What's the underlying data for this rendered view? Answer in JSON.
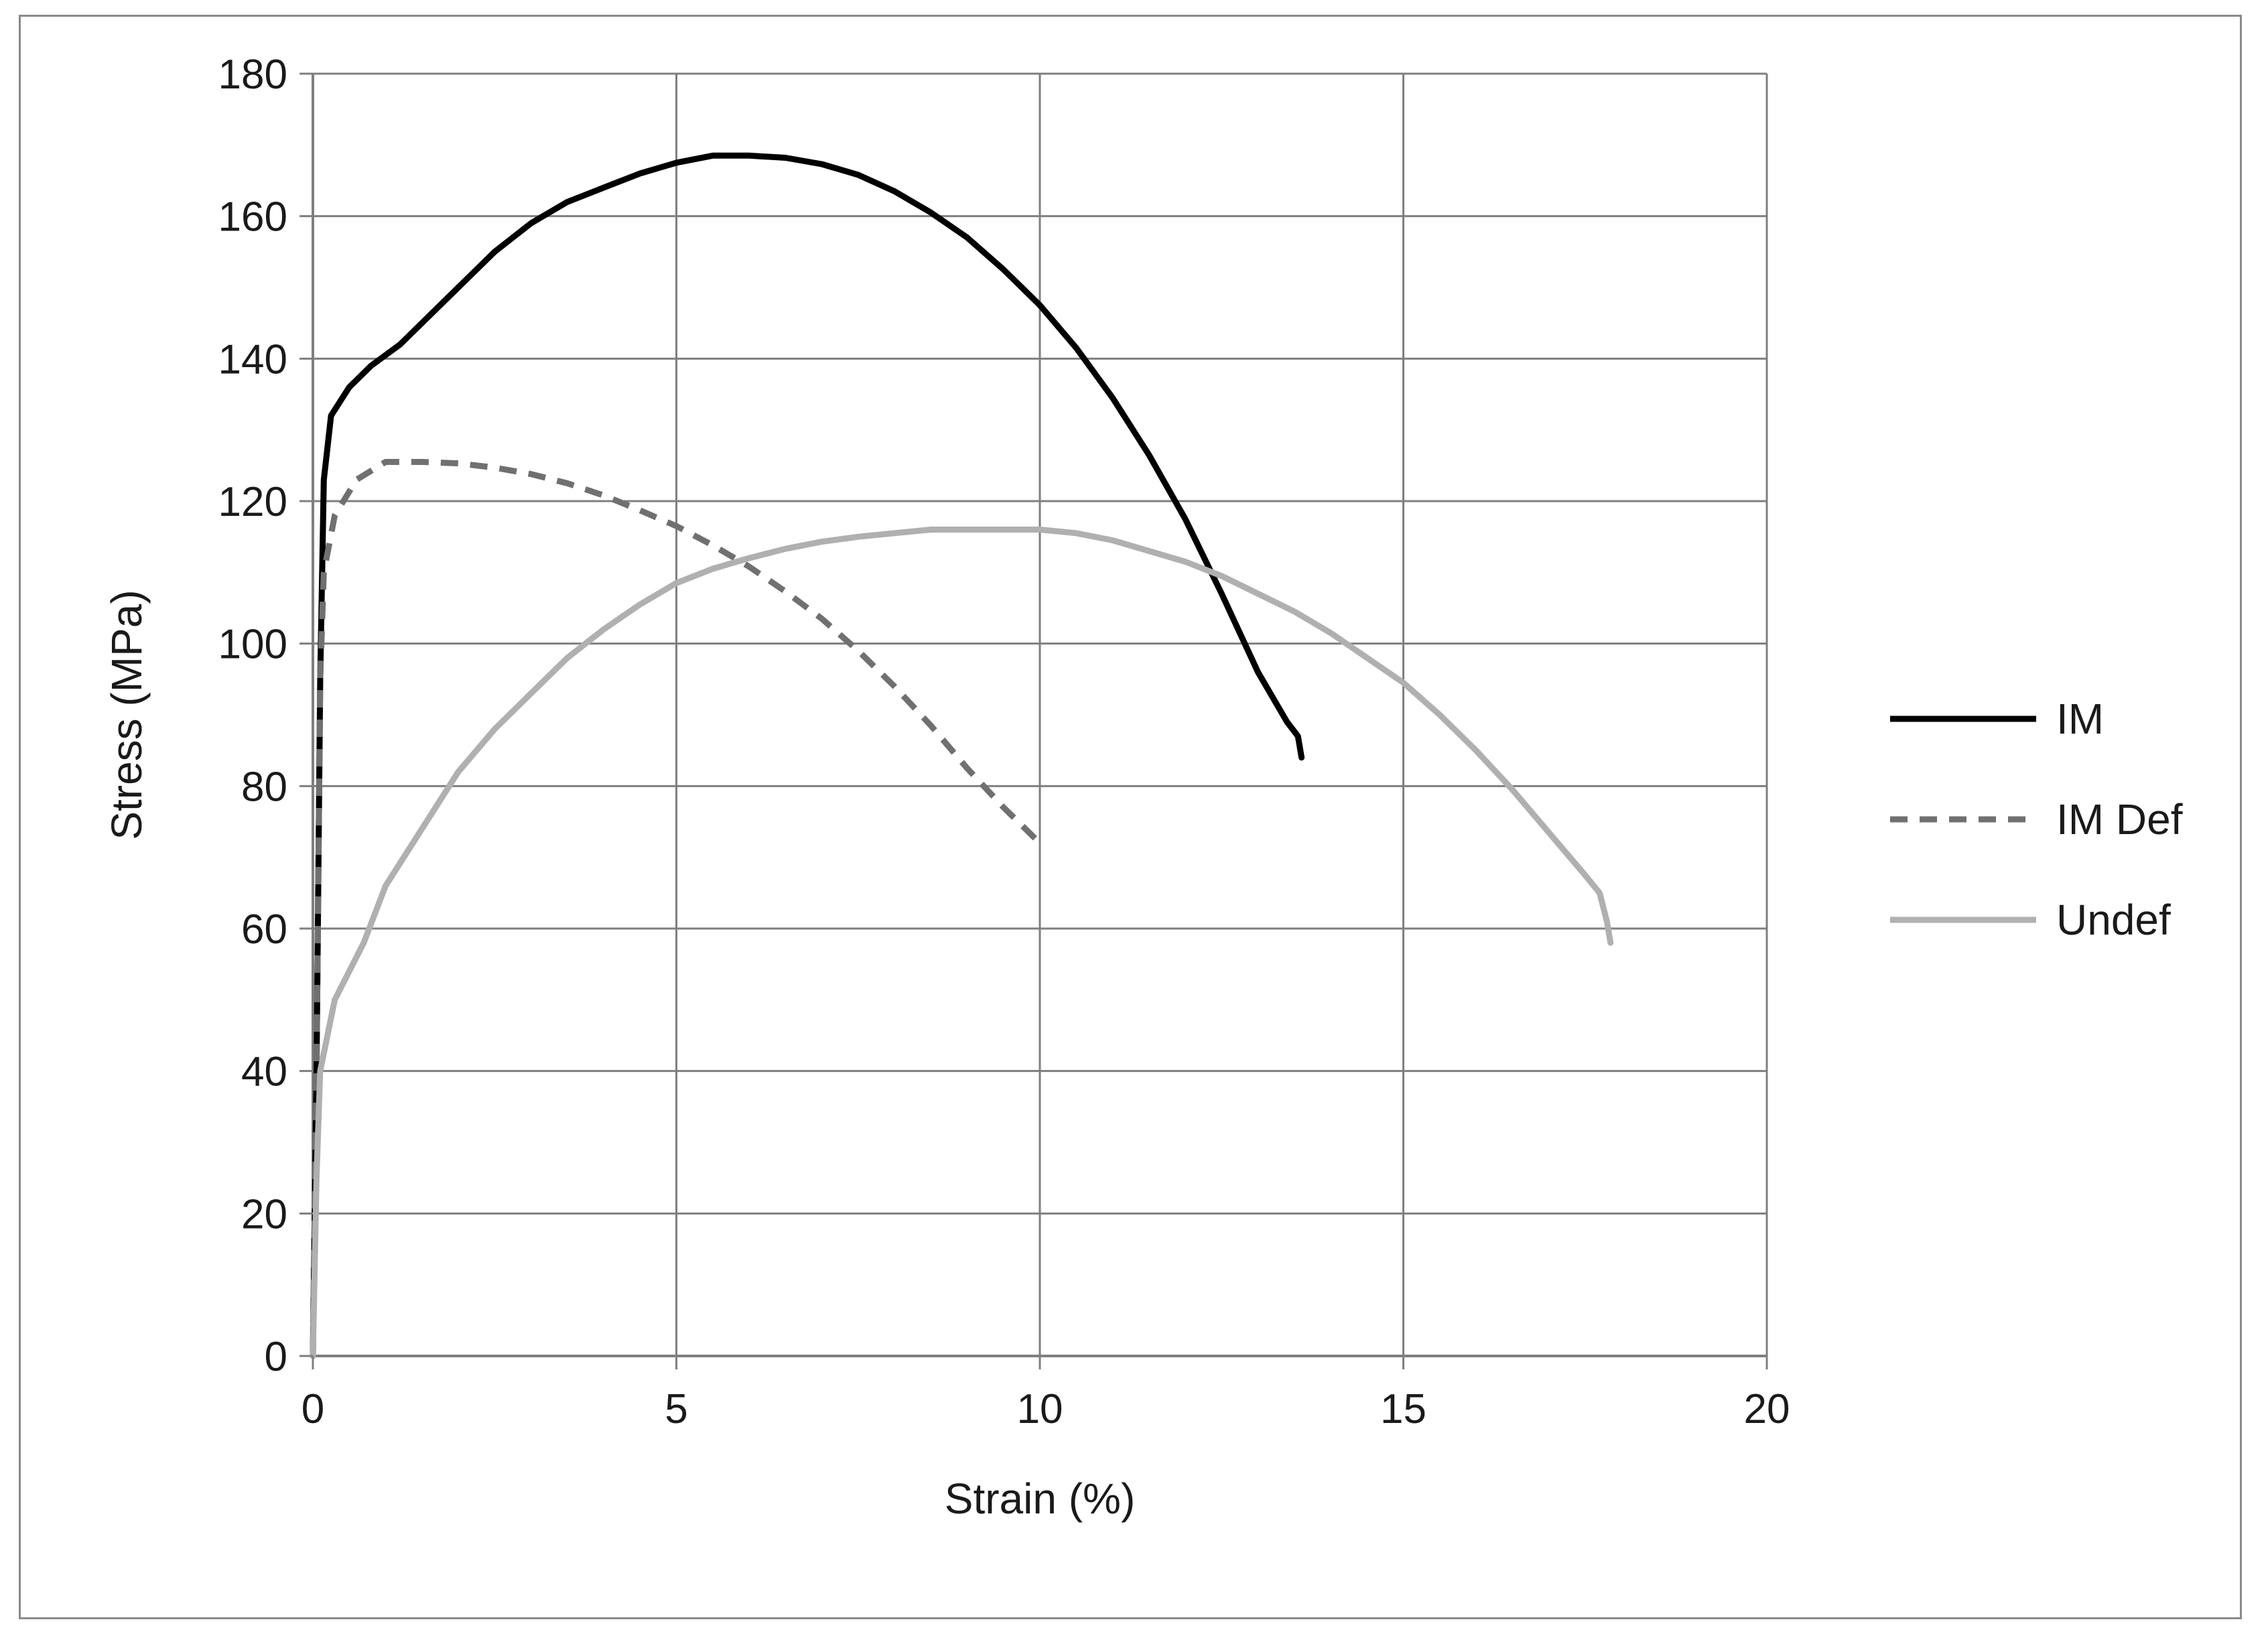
{
  "chart_data": {
    "type": "line",
    "title": "",
    "xlabel": "Strain (%)",
    "ylabel": "Stress (MPa)",
    "xlim": [
      0,
      20
    ],
    "ylim": [
      0,
      180
    ],
    "x_ticks": [
      0,
      5,
      10,
      15,
      20
    ],
    "x_tick_labels": [
      "0",
      "5",
      "10",
      "15",
      "20"
    ],
    "y_ticks": [
      0,
      20,
      40,
      60,
      80,
      100,
      120,
      140,
      160,
      180
    ],
    "y_tick_labels": [
      "0",
      "20",
      "40",
      "60",
      "80",
      "100",
      "120",
      "140",
      "160",
      "180"
    ],
    "grid": true,
    "legend_position": "right",
    "series": [
      {
        "name": "IM",
        "color": "#000000",
        "style": "solid",
        "points": [
          [
            0,
            0
          ],
          [
            0.05,
            40
          ],
          [
            0.1,
            95
          ],
          [
            0.15,
            123
          ],
          [
            0.25,
            132
          ],
          [
            0.5,
            136
          ],
          [
            0.8,
            139
          ],
          [
            1.2,
            142
          ],
          [
            1.6,
            146
          ],
          [
            2.0,
            150
          ],
          [
            2.5,
            155
          ],
          [
            3.0,
            159
          ],
          [
            3.5,
            162
          ],
          [
            4.0,
            164
          ],
          [
            4.5,
            166
          ],
          [
            5.0,
            167.5
          ],
          [
            5.5,
            168.5
          ],
          [
            6.0,
            168.5
          ],
          [
            6.5,
            168.2
          ],
          [
            7.0,
            167.3
          ],
          [
            7.5,
            165.8
          ],
          [
            8.0,
            163.5
          ],
          [
            8.5,
            160.5
          ],
          [
            9.0,
            157
          ],
          [
            9.5,
            152.5
          ],
          [
            10.0,
            147.5
          ],
          [
            10.5,
            141.5
          ],
          [
            11.0,
            134.5
          ],
          [
            11.5,
            126.5
          ],
          [
            12.0,
            117.5
          ],
          [
            12.5,
            107
          ],
          [
            13.0,
            96
          ],
          [
            13.4,
            89
          ],
          [
            13.55,
            87
          ],
          [
            13.6,
            84
          ]
        ]
      },
      {
        "name": "IM Def",
        "color": "#707070",
        "style": "dashed",
        "points": [
          [
            0,
            0
          ],
          [
            0.05,
            40
          ],
          [
            0.1,
            95
          ],
          [
            0.15,
            110
          ],
          [
            0.3,
            118
          ],
          [
            0.6,
            123
          ],
          [
            1.0,
            125.5
          ],
          [
            1.5,
            125.5
          ],
          [
            2.0,
            125.3
          ],
          [
            2.5,
            124.7
          ],
          [
            3.0,
            123.8
          ],
          [
            3.5,
            122.5
          ],
          [
            4.0,
            120.8
          ],
          [
            4.5,
            118.7
          ],
          [
            5.0,
            116.5
          ],
          [
            5.5,
            113.8
          ],
          [
            6.0,
            110.8
          ],
          [
            6.5,
            107.3
          ],
          [
            7.0,
            103.5
          ],
          [
            7.5,
            99
          ],
          [
            8.0,
            94
          ],
          [
            8.5,
            88.5
          ],
          [
            9.0,
            82.5
          ],
          [
            9.5,
            77
          ],
          [
            10.0,
            72
          ]
        ]
      },
      {
        "name": "Undef",
        "color": "#b0b0b0",
        "style": "solid",
        "points": [
          [
            0,
            0
          ],
          [
            0.05,
            25
          ],
          [
            0.1,
            40
          ],
          [
            0.3,
            50
          ],
          [
            0.7,
            58
          ],
          [
            1.0,
            66
          ],
          [
            1.5,
            74
          ],
          [
            2.0,
            82
          ],
          [
            2.5,
            88
          ],
          [
            3.0,
            93
          ],
          [
            3.5,
            98
          ],
          [
            4.0,
            102
          ],
          [
            4.5,
            105.5
          ],
          [
            5.0,
            108.5
          ],
          [
            5.5,
            110.5
          ],
          [
            6.0,
            112
          ],
          [
            6.5,
            113.3
          ],
          [
            7.0,
            114.3
          ],
          [
            7.5,
            115
          ],
          [
            8.0,
            115.5
          ],
          [
            8.5,
            116
          ],
          [
            9.0,
            116
          ],
          [
            9.5,
            116
          ],
          [
            10.0,
            116
          ],
          [
            10.5,
            115.5
          ],
          [
            11.0,
            114.5
          ],
          [
            11.5,
            113
          ],
          [
            12.0,
            111.5
          ],
          [
            12.5,
            109.5
          ],
          [
            13.0,
            107
          ],
          [
            13.5,
            104.5
          ],
          [
            14.0,
            101.5
          ],
          [
            14.5,
            98
          ],
          [
            15.0,
            94.5
          ],
          [
            15.5,
            90
          ],
          [
            16.0,
            85
          ],
          [
            16.5,
            79.5
          ],
          [
            17.0,
            73.5
          ],
          [
            17.5,
            67.5
          ],
          [
            17.7,
            65
          ],
          [
            17.8,
            61
          ],
          [
            17.85,
            58
          ]
        ]
      }
    ]
  }
}
